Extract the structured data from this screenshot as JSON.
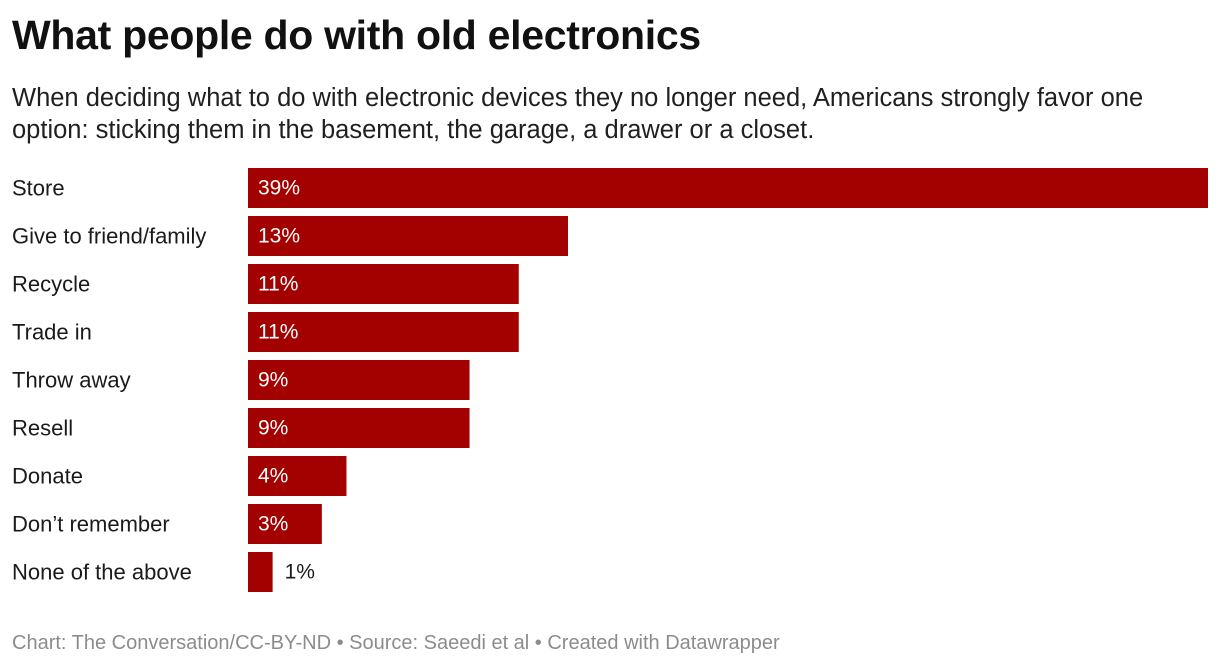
{
  "header": {
    "title": "What people do with old electronics",
    "subtitle": "When deciding what to do with electronic devices they no longer need, Americans strongly favor one option: sticking them in the basement, the garage, a drawer or a closet."
  },
  "footer": {
    "credit": "Chart: The Conversation/CC-BY-ND • Source: Saeedi et al • Created with Datawrapper"
  },
  "colors": {
    "bar": "#a30000",
    "label_inside": "#ffffff",
    "label_outside": "#1a1a1a"
  },
  "chart_data": {
    "type": "bar",
    "orientation": "horizontal",
    "categories": [
      "Store",
      "Give to friend/family",
      "Recycle",
      "Trade in",
      "Throw away",
      "Resell",
      "Donate",
      "Don’t remember",
      "None of the above"
    ],
    "values": [
      39,
      13,
      11,
      11,
      9,
      9,
      4,
      3,
      1
    ],
    "value_labels": [
      "39%",
      "13%",
      "11%",
      "11%",
      "9%",
      "9%",
      "4%",
      "3%",
      "1%"
    ],
    "unit": "%",
    "xlim": [
      0,
      39
    ],
    "grid": false,
    "legend": "none"
  }
}
